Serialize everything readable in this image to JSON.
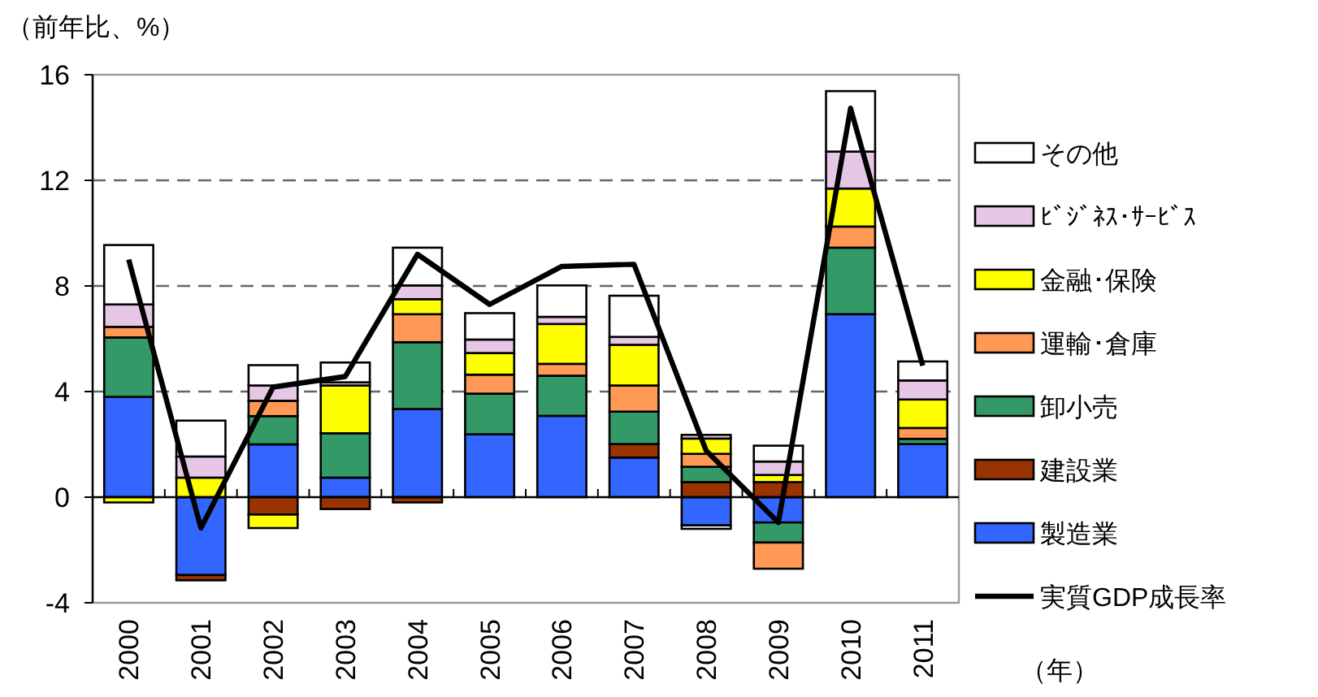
{
  "chart_data": {
    "type": "bar",
    "stacked": true,
    "ylabel": "（前年比、%）",
    "xlabel": "（年）",
    "categories": [
      "2000",
      "2001",
      "2002",
      "2003",
      "2004",
      "2005",
      "2006",
      "2007",
      "2008",
      "2009",
      "2010",
      "2011"
    ],
    "ylim": [
      -4,
      16
    ],
    "yticks": [
      -4,
      0,
      4,
      8,
      12,
      16
    ],
    "grid": "y",
    "legend": "right",
    "series": [
      {
        "name": "製造業",
        "color": "#3366ff",
        "values": [
          3.8,
          -2.95,
          2.0,
          0.74,
          3.34,
          2.38,
          3.08,
          1.5,
          -1.07,
          -0.96,
          6.93,
          2.01
        ]
      },
      {
        "name": "建設業",
        "color": "#993300",
        "values": [
          0,
          -0.2,
          -0.66,
          -0.45,
          -0.2,
          0,
          0,
          0.51,
          0.57,
          0.57,
          0,
          null
        ]
      },
      {
        "name": "卸小売",
        "color": "#339966",
        "values": [
          2.25,
          0,
          1.07,
          1.68,
          2.53,
          1.54,
          1.52,
          1.23,
          0.58,
          -0.76,
          2.52,
          0.2
        ]
      },
      {
        "name": "運輸･倉庫",
        "color": "#ff9955",
        "values": [
          0.4,
          0,
          0.58,
          0,
          1.06,
          0.72,
          0.45,
          0.99,
          0.49,
          -0.99,
          0.8,
          0.41
        ]
      },
      {
        "name": "金融･保険",
        "color": "#ffff00",
        "values": [
          -0.2,
          0.74,
          -0.51,
          1.81,
          0.57,
          0.82,
          1.51,
          1.54,
          0.58,
          0.27,
          1.44,
          1.08
        ]
      },
      {
        "name": "ﾋﾞｼﾞﾈｽ･ｻｰﾋﾞｽ",
        "color": "#e6c8e6",
        "values": [
          0.85,
          0.8,
          0.58,
          0.12,
          0.52,
          0.51,
          0.27,
          0.3,
          0.14,
          0.51,
          1.4,
          0.72
        ]
      },
      {
        "name": "その他",
        "color": "#ffffff",
        "values": [
          2.25,
          1.36,
          0.77,
          0.75,
          1.43,
          1.0,
          1.19,
          1.56,
          -0.13,
          0.6,
          2.29,
          0.72
        ]
      },
      {
        "name": "実質GDP成長率",
        "type": "line",
        "color": "#000000",
        "marker": "none",
        "line_style": "solid",
        "values": [
          9.0,
          -1.17,
          4.17,
          4.57,
          9.2,
          7.3,
          8.74,
          8.82,
          1.76,
          -0.96,
          14.73,
          4.98
        ]
      }
    ]
  }
}
